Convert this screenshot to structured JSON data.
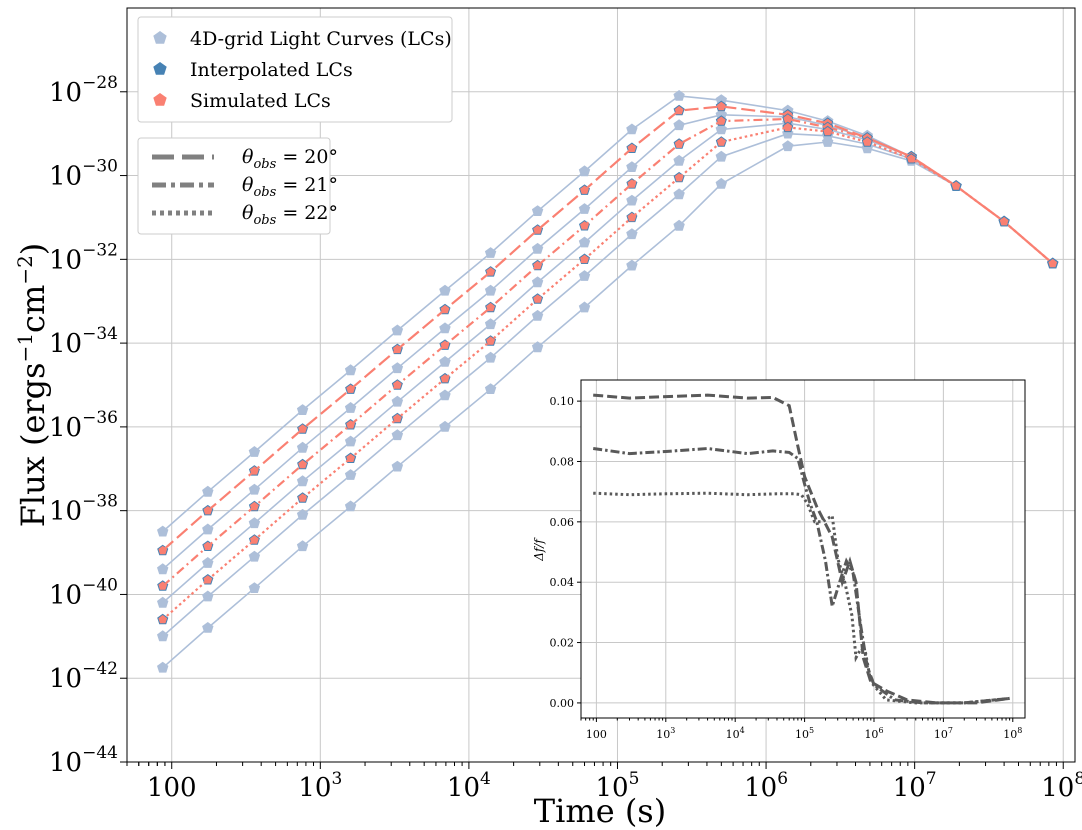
{
  "chart_data": [
    {
      "type": "line",
      "xlabel": "Time (s)",
      "ylabel": "Flux (ergs",
      "ylabel_sup1": "−1",
      "ylabel_mid": "cm",
      "ylabel_sup2": "−2",
      "ylabel_end": ")",
      "x_scale": "log",
      "y_scale": "log",
      "xlim": [
        50,
        120000000.0
      ],
      "ylim": [
        1e-44,
        1e-26
      ],
      "grid": true,
      "x_ticks": [
        {
          "base": "100",
          "exp": "",
          "value": 100
        },
        {
          "base": "10",
          "exp": "3",
          "value": 1000
        },
        {
          "base": "10",
          "exp": "4",
          "value": 10000
        },
        {
          "base": "10",
          "exp": "5",
          "value": 100000
        },
        {
          "base": "10",
          "exp": "6",
          "value": 1000000
        },
        {
          "base": "10",
          "exp": "7",
          "value": 10000000
        },
        {
          "base": "10",
          "exp": "8",
          "value": 100000000
        }
      ],
      "y_ticks": [
        {
          "base": "10",
          "exp": "−28",
          "value": -28
        },
        {
          "base": "10",
          "exp": "−30",
          "value": -30
        },
        {
          "base": "10",
          "exp": "−32",
          "value": -32
        },
        {
          "base": "10",
          "exp": "−34",
          "value": -34
        },
        {
          "base": "10",
          "exp": "−36",
          "value": -36
        },
        {
          "base": "10",
          "exp": "−38",
          "value": -38
        },
        {
          "base": "10",
          "exp": "−40",
          "value": -40
        },
        {
          "base": "10",
          "exp": "−42",
          "value": -42
        },
        {
          "base": "10",
          "exp": "−44",
          "value": -44
        }
      ],
      "time_s": [
        87,
        175,
        360,
        760,
        1600,
        3300,
        6900,
        14000,
        29000,
        60000,
        125000,
        260000,
        500000,
        1400000,
        2600000,
        4800000,
        9500000,
        19000000,
        40000000,
        85000000
      ],
      "grid_lc_log10_flux": [
        [
          -38.5,
          -37.55,
          -36.6,
          -35.6,
          -34.65,
          -33.7,
          -32.75,
          -31.85,
          -30.85,
          -29.9,
          -28.9,
          -28.1,
          -28.2,
          -28.45,
          -28.7,
          -29.05,
          -29.55,
          -30.25,
          -31.1,
          -32.1
        ],
        [
          -39.4,
          -38.45,
          -37.5,
          -36.5,
          -35.55,
          -34.6,
          -33.65,
          -32.75,
          -31.75,
          -30.8,
          -29.8,
          -28.8,
          -28.55,
          -28.6,
          -28.8,
          -29.1,
          -29.55,
          -30.25,
          -31.1,
          -32.1
        ],
        [
          -40.2,
          -39.25,
          -38.3,
          -37.3,
          -36.35,
          -35.4,
          -34.45,
          -33.55,
          -32.55,
          -31.6,
          -30.6,
          -29.65,
          -28.9,
          -28.75,
          -28.9,
          -29.15,
          -29.55,
          -30.25,
          -31.1,
          -32.1
        ],
        [
          -41.0,
          -40.05,
          -39.1,
          -38.1,
          -37.15,
          -36.2,
          -35.25,
          -34.35,
          -33.35,
          -32.4,
          -31.4,
          -30.45,
          -29.55,
          -29.0,
          -29.05,
          -29.25,
          -29.6,
          -30.25,
          -31.1,
          -32.1
        ],
        [
          -41.75,
          -40.8,
          -39.85,
          -38.85,
          -37.9,
          -36.95,
          -36.0,
          -35.1,
          -34.1,
          -33.15,
          -32.15,
          -31.2,
          -30.2,
          -29.3,
          -29.2,
          -29.35,
          -29.65,
          -30.25,
          -31.1,
          -32.1
        ]
      ],
      "series": [
        {
          "name": "Interpolated LCs",
          "theta_obs_deg": 20,
          "log10_flux": [
            -38.95,
            -38.0,
            -37.05,
            -36.05,
            -35.1,
            -34.15,
            -33.2,
            -32.3,
            -31.3,
            -30.35,
            -29.35,
            -28.45,
            -28.35,
            -28.55,
            -28.75,
            -29.1,
            -29.55,
            -30.25,
            -31.1,
            -32.1
          ]
        },
        {
          "name": "Simulated LCs",
          "theta_obs_deg": 20,
          "log10_flux": [
            -38.95,
            -38.0,
            -37.05,
            -36.05,
            -35.1,
            -34.15,
            -33.2,
            -32.3,
            -31.3,
            -30.35,
            -29.35,
            -28.45,
            -28.35,
            -28.55,
            -28.75,
            -29.1,
            -29.55,
            -30.25,
            -31.1,
            -32.1
          ]
        },
        {
          "name": "Interpolated LCs",
          "theta_obs_deg": 21,
          "log10_flux": [
            -39.8,
            -38.85,
            -37.9,
            -36.9,
            -35.95,
            -35.0,
            -34.05,
            -33.15,
            -32.15,
            -31.2,
            -30.2,
            -29.25,
            -28.7,
            -28.65,
            -28.85,
            -29.1,
            -29.55,
            -30.25,
            -31.1,
            -32.1
          ]
        },
        {
          "name": "Simulated LCs",
          "theta_obs_deg": 21,
          "log10_flux": [
            -39.8,
            -38.85,
            -37.9,
            -36.9,
            -35.95,
            -35.0,
            -34.05,
            -33.15,
            -32.15,
            -31.2,
            -30.2,
            -29.25,
            -28.7,
            -28.65,
            -28.85,
            -29.1,
            -29.55,
            -30.25,
            -31.1,
            -32.1
          ]
        },
        {
          "name": "Interpolated LCs",
          "theta_obs_deg": 22,
          "log10_flux": [
            -40.6,
            -39.65,
            -38.7,
            -37.7,
            -36.75,
            -35.8,
            -34.85,
            -33.95,
            -32.95,
            -32.0,
            -31.0,
            -30.05,
            -29.2,
            -28.85,
            -28.95,
            -29.2,
            -29.6,
            -30.25,
            -31.1,
            -32.1
          ]
        },
        {
          "name": "Simulated LCs",
          "theta_obs_deg": 22,
          "log10_flux": [
            -40.6,
            -39.65,
            -38.7,
            -37.7,
            -36.75,
            -35.8,
            -34.85,
            -33.95,
            -32.95,
            -32.0,
            -31.0,
            -30.05,
            -29.2,
            -28.85,
            -28.95,
            -29.2,
            -29.6,
            -30.25,
            -31.1,
            -32.1
          ]
        }
      ],
      "legend_markers": {
        "position": "upper-left",
        "entries": [
          "4D-grid Light Curves (LCs)",
          "Interpolated LCs",
          "Simulated LCs"
        ]
      },
      "legend_lines": {
        "position": "upper-left",
        "entries": [
          {
            "theta": "θ",
            "sub": "obs",
            "value": " = 20°",
            "style": "dashed"
          },
          {
            "theta": "θ",
            "sub": "obs",
            "value": " = 21°",
            "style": "dashdot"
          },
          {
            "theta": "θ",
            "sub": "obs",
            "value": " = 22°",
            "style": "dotted"
          }
        ]
      },
      "colors": {
        "grid_lc": "#adbfd9",
        "interpolated": "#4682b4",
        "simulated": "#fa8072",
        "legend_line": "#808080",
        "grid": "#c8c8c8"
      }
    },
    {
      "type": "line",
      "placement": "inset lower-right",
      "ylabel": "Δf/f",
      "x_scale": "log",
      "xlim": [
        60,
        150000000.0
      ],
      "ylim": [
        -0.005,
        0.107
      ],
      "grid": true,
      "x_ticks": [
        {
          "base": "100",
          "exp": "",
          "value": 100
        },
        {
          "base": "10",
          "exp": "3",
          "value": 1000
        },
        {
          "base": "10",
          "exp": "4",
          "value": 10000
        },
        {
          "base": "10",
          "exp": "5",
          "value": 100000
        },
        {
          "base": "10",
          "exp": "6",
          "value": 1000000
        },
        {
          "base": "10",
          "exp": "7",
          "value": 10000000
        },
        {
          "base": "10",
          "exp": "8",
          "value": 100000000
        }
      ],
      "y_ticks": [
        "0.00",
        "0.02",
        "0.04",
        "0.06",
        "0.08",
        "0.10"
      ],
      "series": [
        {
          "theta_obs_deg": 20,
          "style": "dashed",
          "x": [
            90,
            300,
            1000,
            4000,
            15000,
            35000,
            60000,
            80000,
            100000,
            150000,
            250000,
            350000,
            450000,
            550000,
            700000,
            900000,
            1500000,
            3000000,
            8000000,
            30000000,
            90000000
          ],
          "y": [
            0.102,
            0.101,
            0.1015,
            0.102,
            0.101,
            0.1012,
            0.0985,
            0.085,
            0.075,
            0.065,
            0.055,
            0.04,
            0.047,
            0.04,
            0.015,
            0.007,
            0.004,
            0.001,
            0.0,
            0.0,
            0.0015
          ]
        },
        {
          "theta_obs_deg": 21,
          "style": "dashdot",
          "x": [
            90,
            300,
            1000,
            4000,
            15000,
            35000,
            60000,
            80000,
            100000,
            120000,
            150000,
            200000,
            250000,
            320000,
            400000,
            500000,
            650000,
            800000,
            1000000,
            2000000,
            5000000,
            20000000,
            90000000
          ],
          "y": [
            0.0843,
            0.0826,
            0.0833,
            0.0843,
            0.0826,
            0.0835,
            0.083,
            0.081,
            0.0725,
            0.066,
            0.06,
            0.047,
            0.032,
            0.04,
            0.047,
            0.043,
            0.025,
            0.012,
            0.006,
            0.001,
            0.0,
            0.0,
            0.0015
          ]
        },
        {
          "theta_obs_deg": 22,
          "style": "dotted",
          "x": [
            90,
            300,
            1000,
            4000,
            15000,
            40000,
            70000,
            90000,
            110000,
            140000,
            180000,
            250000,
            300000,
            380000,
            480000,
            550000,
            650000,
            750000,
            900000,
            1500000,
            4000000,
            20000000,
            90000000
          ],
          "y": [
            0.0695,
            0.069,
            0.0693,
            0.0695,
            0.069,
            0.0693,
            0.0693,
            0.069,
            0.066,
            0.06,
            0.06,
            0.062,
            0.048,
            0.04,
            0.029,
            0.015,
            0.018,
            0.017,
            0.007,
            0.001,
            0.0,
            0.0,
            0.0015
          ]
        }
      ],
      "colors": {
        "line": "#595959",
        "grid": "#c8c8c8"
      }
    }
  ]
}
